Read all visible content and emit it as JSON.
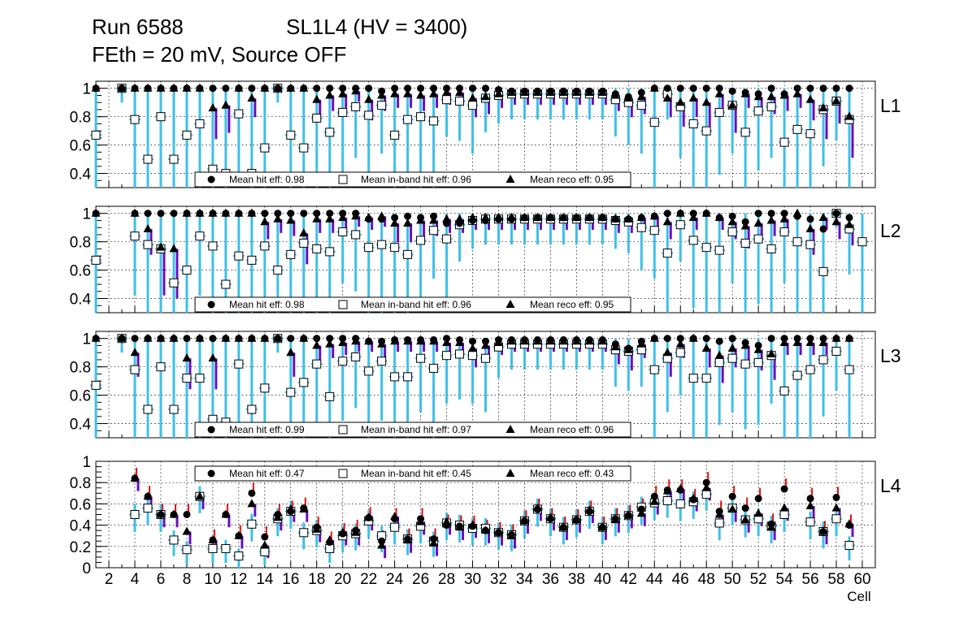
{
  "header": {
    "run": "Run 6588",
    "chamber": "SL1L4 (HV = 3400)",
    "conditions": "FEth = 20 mV, Source OFF"
  },
  "legend_labels": {
    "hit": "Mean hit  eff:",
    "inband": "Mean in-band hit eff:",
    "reco": "Mean reco eff:"
  },
  "colors": {
    "hit_marker": "#000000",
    "reco_marker": "#000000",
    "inband_marker_fill": "#ffffff",
    "error_bar_primary": "#3ec0e8",
    "error_bar_secondary": "#6a0fc0",
    "error_bar_tertiary": "#e01010"
  },
  "chart_data": [
    {
      "type": "scatter",
      "layer": "L1",
      "xlabel": "Cell",
      "ylabel": "",
      "xlim": [
        1,
        61
      ],
      "ylim": [
        0.3,
        1.05
      ],
      "yticks": [
        "0.4",
        "0.6",
        "0.8",
        "1"
      ],
      "grid": true,
      "legend": {
        "position": "bottom-center",
        "hit_mean": "0.98",
        "inband_mean": "0.96",
        "reco_mean": "0.95"
      },
      "series": [
        {
          "name": "hit",
          "marker": "circle",
          "values": [
            1,
            null,
            1,
            1,
            1,
            1,
            1,
            1,
            1,
            1,
            1,
            1,
            1,
            1,
            1,
            1,
            1,
            1,
            1,
            1,
            1,
            1,
            0.98,
            1,
            1,
            1,
            1,
            1,
            1,
            1,
            1,
            0.99,
            0.98,
            0.98,
            0.98,
            0.98,
            0.98,
            0.98,
            0.98,
            0.98,
            0.96,
            0.94,
            0.97,
            1,
            1,
            1,
            1,
            1,
            1,
            0.98,
            0.97,
            0.96,
            1,
            0.96,
            1,
            1,
            1,
            1,
            1,
            null
          ]
        },
        {
          "name": "inband",
          "marker": "open-square",
          "values": [
            0.67,
            null,
            1,
            0.78,
            0.5,
            0.8,
            0.5,
            0.67,
            0.75,
            0.43,
            0.4,
            0.82,
            0.4,
            0.58,
            1,
            0.67,
            0.58,
            0.79,
            0.69,
            0.83,
            0.87,
            0.81,
            0.88,
            0.67,
            0.78,
            0.8,
            0.77,
            0.92,
            0.91,
            0.88,
            0.93,
            0.95,
            0.96,
            0.96,
            0.96,
            0.96,
            0.96,
            0.96,
            0.96,
            0.96,
            0.92,
            0.9,
            0.88,
            0.76,
            0.96,
            0.87,
            0.75,
            0.7,
            0.83,
            0.88,
            0.69,
            0.84,
            0.87,
            0.62,
            0.71,
            0.68,
            0.85,
            0.91,
            0.78,
            null
          ]
        },
        {
          "name": "reco",
          "marker": "triangle",
          "values": [
            1,
            null,
            1,
            1,
            1,
            1,
            1,
            1,
            1,
            0.86,
            0.88,
            1,
            0.93,
            1,
            1,
            1,
            1,
            0.92,
            0.95,
            0.96,
            0.98,
            0.92,
            0.95,
            0.96,
            0.96,
            0.95,
            0.96,
            0.97,
            0.97,
            0.93,
            0.94,
            0.96,
            0.97,
            0.97,
            0.97,
            0.97,
            0.97,
            0.97,
            0.97,
            0.97,
            0.95,
            0.93,
            0.94,
            1,
            0.93,
            0.9,
            0.93,
            0.9,
            0.96,
            0.88,
            0.96,
            0.94,
            0.94,
            0.95,
            0.96,
            0.92,
            0.86,
            0.91,
            0.8,
            null
          ]
        }
      ]
    },
    {
      "type": "scatter",
      "layer": "L2",
      "xlabel": "Cell",
      "ylabel": "",
      "xlim": [
        1,
        61
      ],
      "ylim": [
        0.3,
        1.05
      ],
      "yticks": [
        "0.4",
        "0.6",
        "0.8",
        "1"
      ],
      "grid": true,
      "legend": {
        "position": "bottom-center",
        "hit_mean": "0.98",
        "inband_mean": "0.96",
        "reco_mean": "0.95"
      },
      "series": [
        {
          "name": "hit",
          "marker": "circle",
          "values": [
            1,
            null,
            null,
            1,
            1,
            1,
            1,
            1,
            1,
            1,
            1,
            1,
            1,
            1,
            1,
            1,
            1,
            1,
            1,
            1,
            1,
            0.96,
            0.96,
            0.97,
            0.98,
            0.97,
            0.98,
            0.93,
            0.93,
            0.95,
            0.95,
            0.96,
            0.96,
            0.97,
            0.97,
            0.97,
            0.97,
            0.97,
            0.97,
            0.97,
            0.96,
            0.96,
            0.97,
            0.98,
            1,
            1,
            1,
            1,
            0.97,
            0.98,
            0.94,
            1,
            1,
            1,
            0.98,
            0.96,
            0.89,
            1,
            0.97,
            null
          ]
        },
        {
          "name": "inband",
          "marker": "open-square",
          "values": [
            0.67,
            null,
            null,
            0.84,
            0.78,
            0.75,
            0.51,
            0.6,
            0.84,
            0.77,
            0.5,
            0.7,
            0.67,
            0.77,
            0.6,
            0.71,
            0.79,
            0.75,
            0.73,
            0.87,
            0.85,
            0.76,
            0.78,
            0.76,
            0.71,
            0.81,
            0.88,
            0.82,
            0.92,
            0.95,
            0.96,
            0.96,
            0.96,
            0.96,
            0.96,
            0.96,
            0.96,
            0.96,
            0.96,
            0.96,
            0.95,
            0.94,
            0.9,
            0.88,
            0.72,
            0.92,
            0.81,
            0.76,
            0.74,
            0.87,
            0.79,
            0.82,
            0.75,
            0.87,
            0.8,
            0.78,
            0.59,
            1,
            0.89,
            0.8
          ]
        },
        {
          "name": "reco",
          "marker": "triangle",
          "values": [
            1,
            null,
            null,
            1,
            0.89,
            0.76,
            0.75,
            1,
            1,
            1,
            1,
            1,
            1,
            0.94,
            0.96,
            0.95,
            0.86,
            0.96,
            0.96,
            0.97,
            0.98,
            0.97,
            0.98,
            0.93,
            0.93,
            0.95,
            0.95,
            0.96,
            0.96,
            0.97,
            0.97,
            0.97,
            0.97,
            0.97,
            0.97,
            0.97,
            0.97,
            0.97,
            0.97,
            0.97,
            0.96,
            0.96,
            0.97,
            0.98,
            0.94,
            1,
            0.97,
            1,
            0.97,
            0.94,
            0.91,
            0.93,
            0.95,
            0.96,
            1,
            0.89,
            0.97,
            0.94,
            0.92,
            null
          ]
        }
      ]
    },
    {
      "type": "scatter",
      "layer": "L3",
      "xlabel": "Cell",
      "ylabel": "",
      "xlim": [
        1,
        61
      ],
      "ylim": [
        0.3,
        1.05
      ],
      "yticks": [
        "0.4",
        "0.6",
        "0.8",
        "1"
      ],
      "grid": true,
      "legend": {
        "position": "bottom-center",
        "hit_mean": "0.99",
        "inband_mean": "0.97",
        "reco_mean": "0.96"
      },
      "series": [
        {
          "name": "hit",
          "marker": "circle",
          "values": [
            1,
            null,
            1,
            1,
            1,
            1,
            1,
            1,
            1,
            1,
            1,
            1,
            1,
            1,
            1,
            1,
            1,
            1,
            1,
            1,
            1,
            0.98,
            0.98,
            0.99,
            0.99,
            0.99,
            0.99,
            1,
            0.99,
            0.98,
            0.98,
            0.99,
            0.99,
            0.99,
            0.99,
            0.99,
            0.99,
            0.99,
            0.99,
            0.99,
            0.96,
            0.93,
            0.98,
            1,
            1,
            1,
            1,
            1,
            0.98,
            1,
            0.97,
            0.95,
            1,
            1,
            1,
            1,
            1,
            1,
            1,
            null
          ]
        },
        {
          "name": "inband",
          "marker": "open-square",
          "values": [
            0.67,
            null,
            1,
            0.78,
            0.5,
            0.8,
            0.5,
            0.72,
            0.72,
            0.43,
            0.41,
            0.82,
            0.5,
            0.65,
            1,
            0.62,
            0.69,
            0.82,
            0.59,
            0.84,
            0.87,
            0.77,
            0.84,
            0.73,
            0.73,
            0.86,
            0.79,
            0.88,
            0.89,
            0.88,
            0.86,
            0.94,
            0.96,
            0.96,
            0.96,
            0.96,
            0.96,
            0.96,
            0.96,
            0.96,
            0.92,
            0.91,
            0.92,
            0.78,
            0.86,
            0.9,
            0.72,
            0.72,
            0.83,
            0.86,
            0.82,
            0.83,
            0.88,
            0.63,
            0.74,
            0.78,
            0.85,
            0.91,
            0.78,
            null
          ]
        },
        {
          "name": "reco",
          "marker": "triangle",
          "values": [
            1,
            null,
            1,
            0.9,
            1,
            1,
            1,
            0.86,
            1,
            0.86,
            1,
            1,
            1,
            1,
            1,
            0.9,
            1,
            0.95,
            0.96,
            0.97,
            0.98,
            0.98,
            0.96,
            0.98,
            0.98,
            0.98,
            0.98,
            0.97,
            0.97,
            0.93,
            0.95,
            0.97,
            0.98,
            0.98,
            0.98,
            0.98,
            0.98,
            0.98,
            0.98,
            0.98,
            0.94,
            0.92,
            0.96,
            1,
            0.9,
            0.96,
            1,
            0.93,
            0.88,
            0.93,
            0.95,
            0.92,
            0.89,
            0.97,
            0.97,
            0.97,
            0.97,
            1,
            1,
            null
          ]
        }
      ]
    },
    {
      "type": "scatter",
      "layer": "L4",
      "xlabel": "Cell",
      "ylabel": "",
      "xlim": [
        1,
        61
      ],
      "ylim": [
        0,
        1
      ],
      "yticks": [
        "0",
        "0.2",
        "0.4",
        "0.6",
        "0.8",
        "1"
      ],
      "xticks": [
        "2",
        "4",
        "6",
        "8",
        "10",
        "12",
        "14",
        "16",
        "18",
        "20",
        "22",
        "24",
        "26",
        "28",
        "30",
        "32",
        "34",
        "36",
        "38",
        "40",
        "42",
        "44",
        "46",
        "48",
        "50",
        "52",
        "54",
        "56",
        "58",
        "60"
      ],
      "grid": true,
      "legend": {
        "position": "top-center",
        "hit_mean": "0.47",
        "inband_mean": "0.45",
        "reco_mean": "0.43"
      },
      "series": [
        {
          "name": "hit",
          "marker": "circle",
          "values": [
            null,
            null,
            null,
            0.84,
            0.67,
            0.5,
            0.5,
            0.5,
            null,
            0.26,
            0.5,
            0.3,
            0.7,
            0.29,
            0.5,
            0.53,
            0.56,
            0.38,
            0.24,
            0.32,
            0.35,
            0.47,
            0.25,
            0.46,
            0.27,
            0.46,
            0.27,
            0.4,
            0.39,
            0.39,
            0.35,
            0.33,
            0.31,
            0.44,
            0.55,
            0.46,
            0.38,
            0.45,
            0.53,
            0.38,
            0.46,
            0.49,
            0.55,
            0.67,
            0.73,
            0.73,
            0.64,
            0.8,
            0.53,
            0.67,
            0.56,
            0.65,
            0.41,
            0.74,
            null,
            0.65,
            0.34,
            0.66,
            0.4,
            null
          ]
        },
        {
          "name": "inband",
          "marker": "open-square",
          "values": [
            null,
            null,
            null,
            0.5,
            0.56,
            0.5,
            0.26,
            0.17,
            0.67,
            0.18,
            0.18,
            0.11,
            0.41,
            0.15,
            0.46,
            0.53,
            0.33,
            0.35,
            0.18,
            0.3,
            0.32,
            0.44,
            0.3,
            0.38,
            0.27,
            0.39,
            0.25,
            0.42,
            0.4,
            0.37,
            0.37,
            0.33,
            0.31,
            0.44,
            0.55,
            0.46,
            0.38,
            0.45,
            0.53,
            0.38,
            0.46,
            0.49,
            0.57,
            0.61,
            0.63,
            0.6,
            0.62,
            0.69,
            0.42,
            0.56,
            0.45,
            0.46,
            0.39,
            0.5,
            null,
            0.43,
            0.34,
            0.46,
            0.21,
            null
          ]
        },
        {
          "name": "reco",
          "marker": "triangle",
          "values": [
            null,
            null,
            null,
            0.84,
            0.67,
            0.5,
            0.5,
            0.34,
            0.67,
            0.26,
            0.5,
            0.3,
            0.6,
            0.21,
            0.47,
            0.55,
            0.55,
            0.36,
            0.26,
            0.33,
            0.33,
            0.47,
            0.21,
            0.48,
            0.26,
            0.43,
            0.23,
            0.43,
            0.38,
            0.4,
            0.35,
            0.33,
            0.3,
            0.44,
            0.56,
            0.47,
            0.38,
            0.45,
            0.54,
            0.38,
            0.45,
            0.49,
            0.51,
            0.62,
            0.72,
            0.74,
            0.65,
            0.75,
            0.5,
            0.55,
            0.45,
            0.51,
            0.38,
            0.56,
            null,
            0.58,
            0.34,
            0.56,
            0.41,
            null
          ]
        }
      ]
    }
  ]
}
